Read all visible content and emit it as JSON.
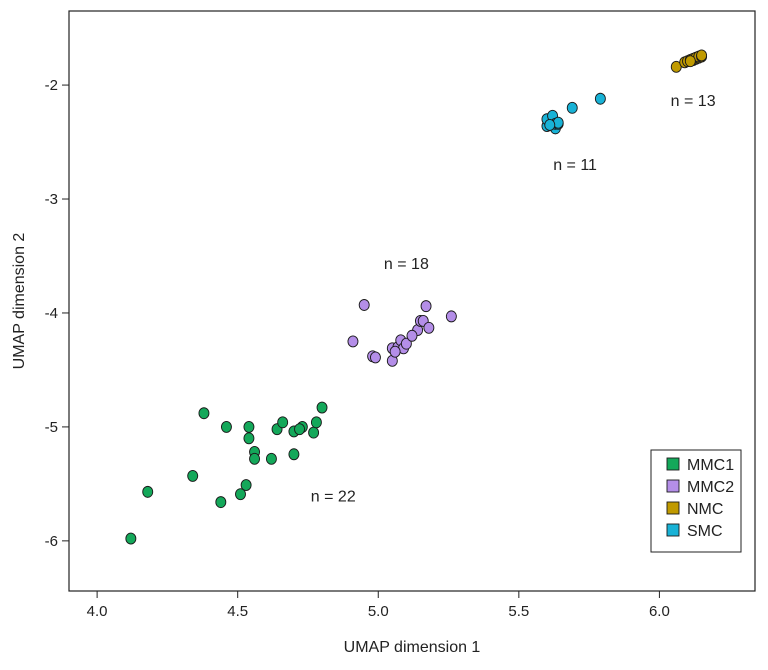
{
  "chart_data": {
    "type": "scatter",
    "xlabel": "UMAP dimension 1",
    "ylabel": "UMAP dimension 2",
    "xlim": [
      3.9,
      6.34
    ],
    "ylim": [
      -6.44,
      -1.35
    ],
    "x_ticks": [
      "4.0",
      "4.5",
      "5.0",
      "5.5",
      "6.0"
    ],
    "y_ticks": [
      "-2",
      "-3",
      "-4",
      "-5",
      "-6"
    ],
    "grid": false,
    "legend_position": "bottom-right",
    "series": [
      {
        "name": "MMC1",
        "color": "#14a85a",
        "points": [
          {
            "x": 4.12,
            "y": -5.98
          },
          {
            "x": 4.18,
            "y": -5.57
          },
          {
            "x": 4.34,
            "y": -5.43
          },
          {
            "x": 4.38,
            "y": -4.88
          },
          {
            "x": 4.44,
            "y": -5.66
          },
          {
            "x": 4.46,
            "y": -5.0
          },
          {
            "x": 4.51,
            "y": -5.59
          },
          {
            "x": 4.53,
            "y": -5.51
          },
          {
            "x": 4.54,
            "y": -5.1
          },
          {
            "x": 4.54,
            "y": -5.0
          },
          {
            "x": 4.56,
            "y": -5.22
          },
          {
            "x": 4.56,
            "y": -5.28
          },
          {
            "x": 4.62,
            "y": -5.28
          },
          {
            "x": 4.64,
            "y": -5.02
          },
          {
            "x": 4.66,
            "y": -4.96
          },
          {
            "x": 4.7,
            "y": -5.04
          },
          {
            "x": 4.7,
            "y": -5.24
          },
          {
            "x": 4.73,
            "y": -5.0
          },
          {
            "x": 4.77,
            "y": -5.05
          },
          {
            "x": 4.78,
            "y": -4.96
          },
          {
            "x": 4.8,
            "y": -4.83
          },
          {
            "x": 4.72,
            "y": -5.02
          }
        ]
      },
      {
        "name": "MMC2",
        "color": "#b48ee8",
        "points": [
          {
            "x": 4.91,
            "y": -4.25
          },
          {
            "x": 4.95,
            "y": -3.93
          },
          {
            "x": 4.98,
            "y": -4.38
          },
          {
            "x": 4.99,
            "y": -4.39
          },
          {
            "x": 5.05,
            "y": -4.42
          },
          {
            "x": 5.05,
            "y": -4.31
          },
          {
            "x": 5.07,
            "y": -4.3
          },
          {
            "x": 5.08,
            "y": -4.24
          },
          {
            "x": 5.09,
            "y": -4.31
          },
          {
            "x": 5.1,
            "y": -4.27
          },
          {
            "x": 5.14,
            "y": -4.15
          },
          {
            "x": 5.15,
            "y": -4.07
          },
          {
            "x": 5.16,
            "y": -4.07
          },
          {
            "x": 5.17,
            "y": -3.94
          },
          {
            "x": 5.18,
            "y": -4.13
          },
          {
            "x": 5.26,
            "y": -4.03
          },
          {
            "x": 5.06,
            "y": -4.34
          },
          {
            "x": 5.12,
            "y": -4.2
          }
        ]
      },
      {
        "name": "NMC",
        "color": "#c09a00",
        "points": [
          {
            "x": 6.06,
            "y": -1.84
          },
          {
            "x": 6.09,
            "y": -1.8
          },
          {
            "x": 6.1,
            "y": -1.79
          },
          {
            "x": 6.11,
            "y": -1.78
          },
          {
            "x": 6.12,
            "y": -1.78
          },
          {
            "x": 6.12,
            "y": -1.77
          },
          {
            "x": 6.13,
            "y": -1.77
          },
          {
            "x": 6.13,
            "y": -1.76
          },
          {
            "x": 6.14,
            "y": -1.76
          },
          {
            "x": 6.14,
            "y": -1.75
          },
          {
            "x": 6.15,
            "y": -1.75
          },
          {
            "x": 6.15,
            "y": -1.74
          },
          {
            "x": 6.11,
            "y": -1.79
          }
        ]
      },
      {
        "name": "SMC",
        "color": "#18b2d6",
        "points": [
          {
            "x": 5.6,
            "y": -2.36
          },
          {
            "x": 5.6,
            "y": -2.3
          },
          {
            "x": 5.62,
            "y": -2.33
          },
          {
            "x": 5.62,
            "y": -2.27
          },
          {
            "x": 5.63,
            "y": -2.38
          },
          {
            "x": 5.63,
            "y": -2.34
          },
          {
            "x": 5.64,
            "y": -2.34
          },
          {
            "x": 5.64,
            "y": -2.33
          },
          {
            "x": 5.69,
            "y": -2.2
          },
          {
            "x": 5.79,
            "y": -2.12
          },
          {
            "x": 5.61,
            "y": -2.35
          }
        ]
      }
    ],
    "annotations": [
      {
        "text": "n = 22",
        "x": 4.84,
        "y": -5.61
      },
      {
        "text": "n = 18",
        "x": 5.1,
        "y": -3.57
      },
      {
        "text": "n = 11",
        "x": 5.7,
        "y": -2.7
      },
      {
        "text": "n = 13",
        "x": 6.12,
        "y": -2.14
      }
    ]
  }
}
